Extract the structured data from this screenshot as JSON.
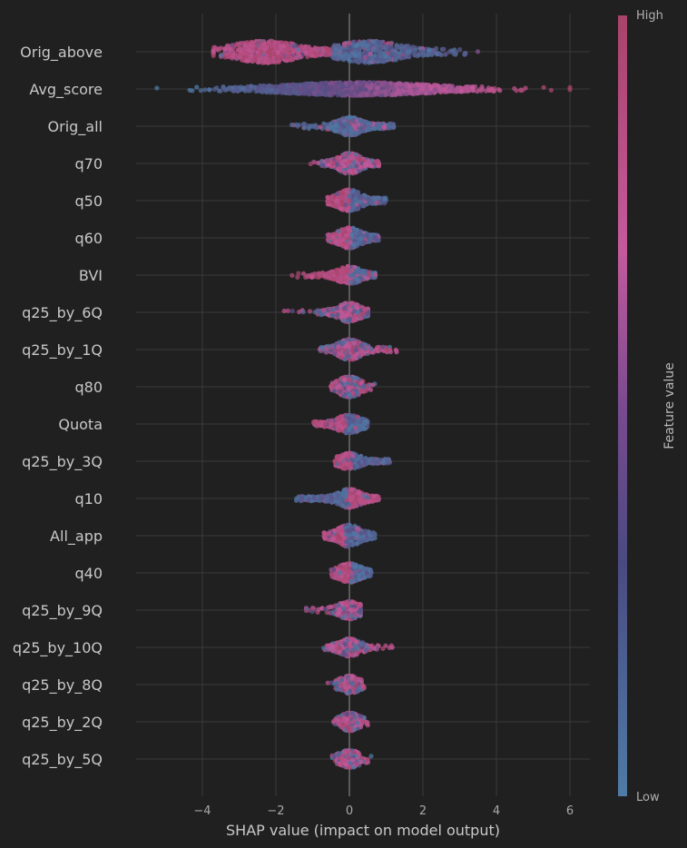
{
  "chart_data": {
    "type": "scatter",
    "subtype": "shap-beeswarm",
    "xlabel": "SHAP value (impact on model output)",
    "xlim": [
      -5.8,
      6.6
    ],
    "xticks": [
      -4,
      -2,
      0,
      2,
      4,
      6
    ],
    "xtick_labels": [
      "−4",
      "−2",
      "0",
      "2",
      "4",
      "6"
    ],
    "grid": true,
    "colorbar": {
      "title": "Feature value",
      "high_label": "High",
      "low_label": "Low",
      "high_color": "#a8436a",
      "mid_color": "#c45a9c",
      "low_color": "#4f7ba6"
    },
    "features": [
      {
        "name": "Orig_above",
        "min": -3.7,
        "max": 3.6,
        "width": 0.3,
        "mode": "split",
        "split": -0.5,
        "left": "high",
        "density": 1100
      },
      {
        "name": "Avg_score",
        "min": -5.3,
        "max": 6.0,
        "width": 0.18,
        "mode": "gradient",
        "direction": "increasing",
        "density": 1300
      },
      {
        "name": "Orig_all",
        "min": -1.6,
        "max": 1.2,
        "width": 0.26,
        "mode": "mostly-low",
        "density": 500
      },
      {
        "name": "q70",
        "min": -1.2,
        "max": 0.8,
        "width": 0.28,
        "mode": "mixed-high",
        "density": 500
      },
      {
        "name": "q50",
        "min": -0.6,
        "max": 1.0,
        "width": 0.3,
        "mode": "split",
        "split": 0.0,
        "left": "high",
        "density": 450
      },
      {
        "name": "q60",
        "min": -0.6,
        "max": 0.8,
        "width": 0.28,
        "mode": "split",
        "split": 0.05,
        "left": "high",
        "density": 420
      },
      {
        "name": "BVI",
        "min": -1.6,
        "max": 0.7,
        "width": 0.24,
        "mode": "bvi",
        "density": 350
      },
      {
        "name": "q25_by_6Q",
        "min": -1.8,
        "max": 0.5,
        "width": 0.26,
        "mode": "mixed-high",
        "density": 420
      },
      {
        "name": "q25_by_1Q",
        "min": -0.8,
        "max": 1.3,
        "width": 0.28,
        "mode": "mixed-high",
        "density": 450
      },
      {
        "name": "q80",
        "min": -0.5,
        "max": 0.7,
        "width": 0.28,
        "mode": "mixed-high",
        "density": 420
      },
      {
        "name": "Quota",
        "min": -1.0,
        "max": 0.5,
        "width": 0.26,
        "mode": "split",
        "split": -0.1,
        "left": "high",
        "density": 400
      },
      {
        "name": "q25_by_3Q",
        "min": -0.4,
        "max": 1.1,
        "width": 0.22,
        "mode": "split",
        "split": 0.05,
        "left": "high",
        "density": 350
      },
      {
        "name": "q10",
        "min": -1.5,
        "max": 0.8,
        "width": 0.26,
        "mode": "split",
        "split": 0.0,
        "left": "low",
        "density": 450
      },
      {
        "name": "All_app",
        "min": -0.7,
        "max": 0.7,
        "width": 0.3,
        "mode": "split",
        "split": -0.1,
        "left": "high",
        "density": 380
      },
      {
        "name": "q40",
        "min": -0.5,
        "max": 0.6,
        "width": 0.26,
        "mode": "split",
        "split": 0.05,
        "left": "high",
        "density": 380
      },
      {
        "name": "q25_by_9Q",
        "min": -1.2,
        "max": 0.3,
        "width": 0.24,
        "mode": "mixed-high",
        "density": 300
      },
      {
        "name": "q25_by_10Q",
        "min": -0.7,
        "max": 1.2,
        "width": 0.24,
        "mode": "mixed-high",
        "density": 300
      },
      {
        "name": "q25_by_8Q",
        "min": -0.6,
        "max": 0.4,
        "width": 0.24,
        "mode": "mixed-high",
        "density": 300
      },
      {
        "name": "q25_by_2Q",
        "min": -0.5,
        "max": 0.5,
        "width": 0.24,
        "mode": "mixed-high",
        "density": 300
      },
      {
        "name": "q25_by_5Q",
        "min": -0.5,
        "max": 0.6,
        "width": 0.24,
        "mode": "mixed-high",
        "density": 300
      }
    ]
  }
}
